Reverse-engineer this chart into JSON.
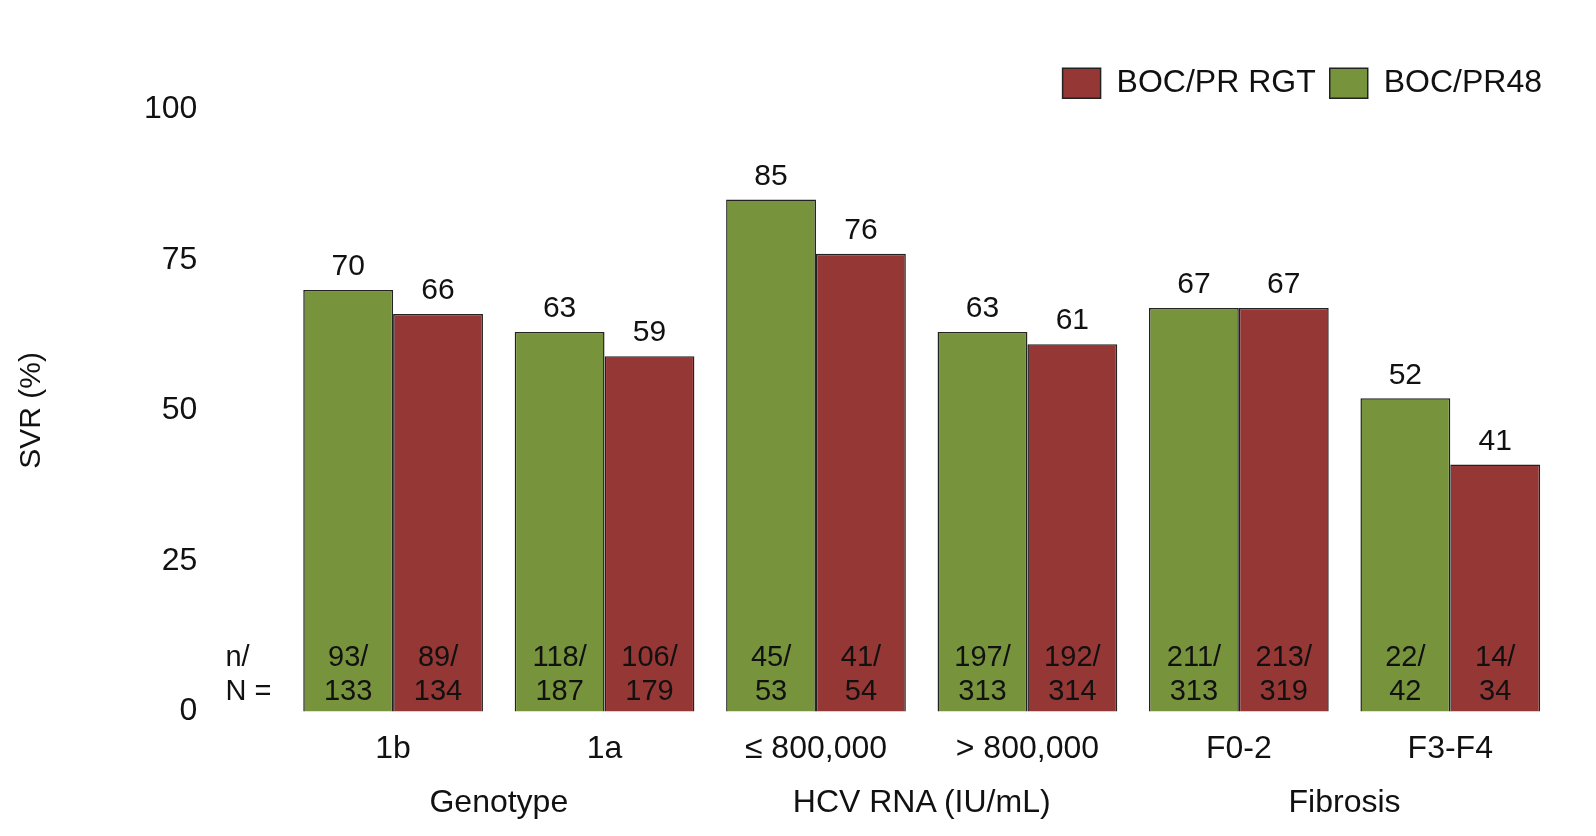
{
  "chart_data": {
    "type": "bar",
    "ylabel": "SVR (%)",
    "categories": [
      "1b",
      "1a",
      "≤ 800,000",
      "> 800,000",
      "F0-2",
      "F3-F4"
    ],
    "series": [
      {
        "name": "BOC/PR48",
        "color": "#77933c",
        "values": [
          70,
          63,
          85,
          63,
          67,
          52
        ]
      },
      {
        "name": "BOC/PR RGT",
        "color": "#953735",
        "values": [
          66,
          59,
          76,
          61,
          67,
          41
        ]
      }
    ],
    "ylim": [
      0,
      100
    ],
    "yticks": [
      0,
      25,
      50,
      75,
      100
    ],
    "grid": false,
    "legend": "top right",
    "data_labels": true,
    "annotations": [
      "n/ N =",
      "Genotype",
      "HCV RNA (IU/mL)",
      "Fibrosis",
      {
        "text": "93/ 133",
        "x": "1b",
        "y": 0
      },
      {
        "text": "89/ 134",
        "x": "1b",
        "y": 0
      },
      {
        "text": "118/ 187",
        "x": "1a",
        "y": 0
      },
      {
        "text": "106/ 179",
        "x": "1a",
        "y": 0
      },
      {
        "text": "45/ 53",
        "x": "≤ 800,000",
        "y": 0
      },
      {
        "text": "41/ 54",
        "x": "≤ 800,000",
        "y": 0
      },
      {
        "text": "197/ 313",
        "x": "> 800,000",
        "y": 0
      },
      {
        "text": "192/ 314",
        "x": "> 800,000",
        "y": 0
      },
      {
        "text": "211/ 313",
        "x": "F0-2",
        "y": 0
      },
      {
        "text": "213/ 319",
        "x": "F0-2",
        "y": 0
      },
      {
        "text": "22/ 42",
        "x": "F3-F4",
        "y": 0
      },
      {
        "text": "14/ 34",
        "x": "F3-F4",
        "y": 0
      }
    ]
  }
}
